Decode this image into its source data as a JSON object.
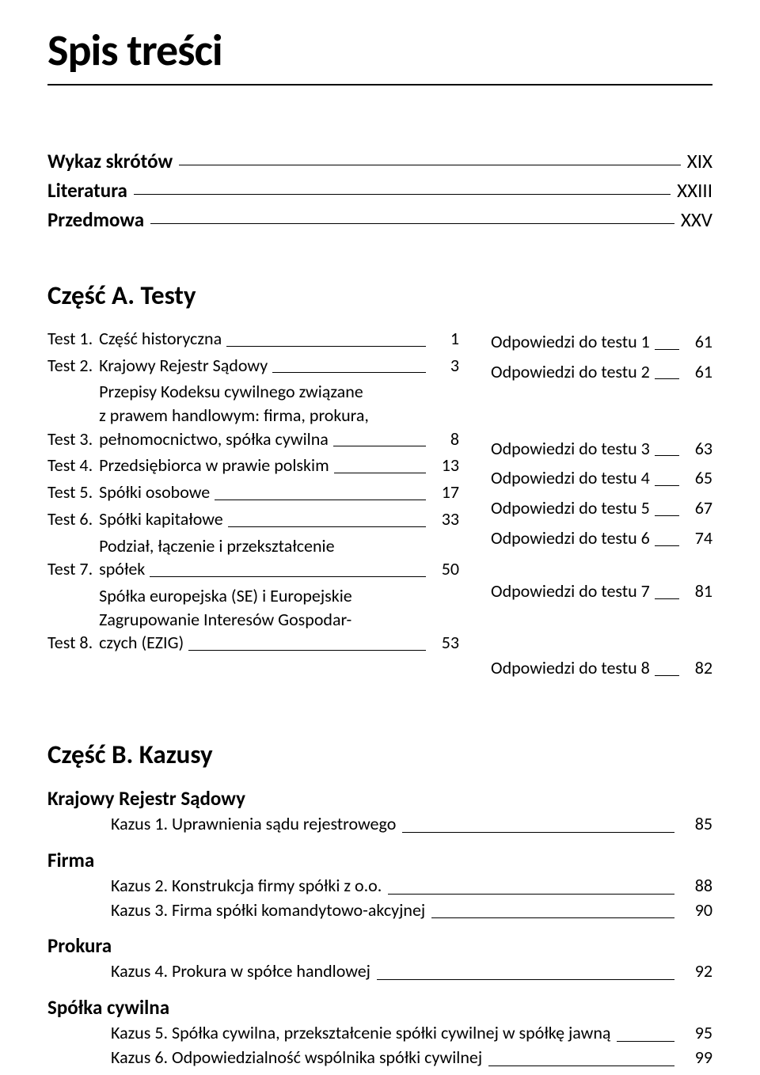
{
  "main_title": "Spis treści",
  "front_matter": [
    {
      "label": "Wykaz skrótów",
      "page": "XIX"
    },
    {
      "label": "Literatura",
      "page": "XXIII"
    },
    {
      "label": "Przedmowa",
      "page": "XXV"
    }
  ],
  "section_a": {
    "title": "Część A. Testy",
    "tests": [
      {
        "label": "Test 1.",
        "title": "Część historyczna",
        "page": "1",
        "answer_label": "Odpowiedzi do testu 1",
        "answer_page": "61"
      },
      {
        "label": "Test 2.",
        "title": "Krajowy Rejestr Sądowy",
        "page": "3",
        "answer_label": "Odpowiedzi do testu 2",
        "answer_page": "61"
      },
      {
        "label": "Test 3.",
        "lines": [
          "Przepisy Kodeksu cywilnego związane",
          "z prawem handlowym: firma, prokura,"
        ],
        "last_line": "pełnomocnictwo, spółka cywilna",
        "page": "8",
        "answer_label": "Odpowiedzi do testu 3",
        "answer_page": "63"
      },
      {
        "label": "Test 4.",
        "title": "Przedsiębiorca w prawie polskim",
        "page": "13",
        "answer_label": "Odpowiedzi do testu 4",
        "answer_page": "65"
      },
      {
        "label": "Test 5.",
        "title": "Spółki osobowe",
        "page": "17",
        "answer_label": "Odpowiedzi do testu 5",
        "answer_page": "67"
      },
      {
        "label": "Test 6.",
        "title": "Spółki kapitałowe",
        "page": "33",
        "answer_label": "Odpowiedzi do testu 6",
        "answer_page": "74"
      },
      {
        "label": "Test 7.",
        "lines": [
          "Podział, łączenie i przekształcenie"
        ],
        "last_line": "spółek",
        "page": "50",
        "answer_label": "Odpowiedzi do testu 7",
        "answer_page": "81"
      },
      {
        "label": "Test 8.",
        "lines": [
          "Spółka europejska (SE) i Europejskie",
          "Zagrupowanie Interesów Gospodar-"
        ],
        "last_line": "czych (EZIG)",
        "page": "53",
        "answer_label": "Odpowiedzi do testu 8",
        "answer_page": "82"
      }
    ]
  },
  "section_b": {
    "title": "Część B. Kazusy",
    "groups": [
      {
        "title": "Krajowy Rejestr Sądowy",
        "items": [
          {
            "text": "Kazus 1. Uprawnienia sądu rejestrowego",
            "page": "85"
          }
        ]
      },
      {
        "title": "Firma",
        "items": [
          {
            "text": "Kazus 2. Konstrukcja firmy spółki z o.o.",
            "page": "88"
          },
          {
            "text": "Kazus 3. Firma spółki komandytowo-akcyjnej",
            "page": "90"
          }
        ]
      },
      {
        "title": "Prokura",
        "items": [
          {
            "text": "Kazus 4. Prokura w spółce handlowej",
            "page": "92"
          }
        ]
      },
      {
        "title": "Spółka cywilna",
        "items": [
          {
            "text": "Kazus 5. Spółka cywilna, przekształcenie spółki cywilnej w spółkę jawną",
            "page": "95"
          },
          {
            "text": "Kazus 6. Odpowiedzialność wspólnika spółki cywilnej",
            "page": "99"
          }
        ]
      }
    ]
  }
}
